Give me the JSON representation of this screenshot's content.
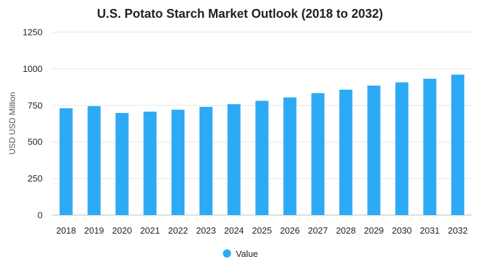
{
  "chart_data": {
    "type": "bar",
    "title": "U.S. Potato Starch Market Outlook (2018 to 2032)",
    "xlabel": "",
    "ylabel": "USD USD Million",
    "ylim": [
      0,
      1250
    ],
    "yticks": [
      0,
      250,
      500,
      750,
      1000,
      1250
    ],
    "grid": true,
    "legend_position": "bottom",
    "categories": [
      "2018",
      "2019",
      "2020",
      "2021",
      "2022",
      "2023",
      "2024",
      "2025",
      "2026",
      "2027",
      "2028",
      "2029",
      "2030",
      "2031",
      "2032"
    ],
    "series": [
      {
        "name": "Value",
        "color": "#2eaaf5",
        "values": [
          730,
          745,
          698,
          707,
          720,
          740,
          758,
          781,
          804,
          833,
          857,
          885,
          907,
          932,
          960
        ]
      }
    ]
  }
}
